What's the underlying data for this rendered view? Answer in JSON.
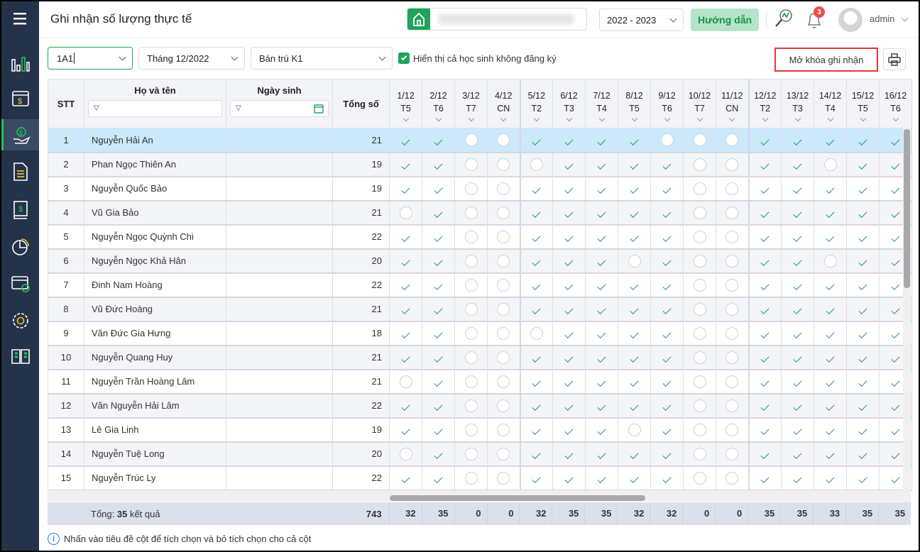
{
  "header": {
    "title": "Ghi nhận số lượng thực tế",
    "school_year": "2022 - 2023",
    "guide_label": "Hướng dẫn",
    "notification_count": "3",
    "user": "admin"
  },
  "colors": {
    "accent": "#22a35a",
    "sidebar": "#243349",
    "selected_row": "#cce8fb",
    "highlight_border": "#e53935"
  },
  "sidebar": {
    "items": [
      {
        "icon": "menu-icon"
      },
      {
        "icon": "bar-chart-icon"
      },
      {
        "icon": "calendar-money-icon"
      },
      {
        "icon": "hand-money-icon",
        "active": true
      },
      {
        "icon": "document-icon"
      },
      {
        "icon": "ledger-icon"
      },
      {
        "icon": "pie-chart-icon"
      },
      {
        "icon": "card-check-icon"
      },
      {
        "icon": "gear-icon"
      },
      {
        "icon": "book-icon"
      }
    ]
  },
  "filters": {
    "class": "1A1",
    "month": "Tháng 12/2022",
    "meal": "Bán trú K1",
    "show_unregistered_label": "Hiển thị cả học sinh không đăng ký",
    "show_unregistered": true,
    "unlock_label": "Mở khóa ghi nhận"
  },
  "table": {
    "headers": {
      "stt": "STT",
      "name": "Họ và tên",
      "dob": "Ngày sinh",
      "total": "Tổng số"
    },
    "days": [
      {
        "d": "1/12",
        "w": "T5"
      },
      {
        "d": "2/12",
        "w": "T6"
      },
      {
        "d": "3/12",
        "w": "T7"
      },
      {
        "d": "4/12",
        "w": "CN"
      },
      {
        "d": "5/12",
        "w": "T2"
      },
      {
        "d": "6/12",
        "w": "T3"
      },
      {
        "d": "7/12",
        "w": "T4"
      },
      {
        "d": "8/12",
        "w": "T5"
      },
      {
        "d": "9/12",
        "w": "T6"
      },
      {
        "d": "10/12",
        "w": "T7"
      },
      {
        "d": "11/12",
        "w": "CN"
      },
      {
        "d": "12/12",
        "w": "T2"
      },
      {
        "d": "13/12",
        "w": "T3"
      },
      {
        "d": "14/12",
        "w": "T4"
      },
      {
        "d": "15/12",
        "w": "T5"
      },
      {
        "d": "16/12",
        "w": "T6"
      }
    ],
    "rows": [
      {
        "stt": "1",
        "name": "Nguyễn Hải An",
        "total": "21",
        "marks": [
          1,
          1,
          0,
          0,
          1,
          1,
          1,
          1,
          0,
          0,
          0,
          1,
          1,
          1,
          1,
          1
        ]
      },
      {
        "stt": "2",
        "name": "Phan Ngọc Thiên An",
        "total": "19",
        "marks": [
          1,
          1,
          0,
          0,
          0,
          1,
          1,
          1,
          1,
          0,
          0,
          1,
          1,
          0,
          1,
          1
        ]
      },
      {
        "stt": "3",
        "name": "Nguyễn Quốc Bảo",
        "total": "19",
        "marks": [
          1,
          1,
          0,
          0,
          1,
          1,
          1,
          1,
          1,
          0,
          0,
          1,
          1,
          1,
          1,
          1
        ]
      },
      {
        "stt": "4",
        "name": "Vũ Gia Bảo",
        "total": "21",
        "marks": [
          0,
          1,
          0,
          0,
          1,
          1,
          1,
          1,
          1,
          0,
          0,
          1,
          1,
          1,
          1,
          1
        ]
      },
      {
        "stt": "5",
        "name": "Nguyễn Ngọc Quỳnh Chi",
        "total": "22",
        "marks": [
          1,
          1,
          0,
          0,
          1,
          1,
          1,
          1,
          1,
          0,
          0,
          1,
          1,
          1,
          1,
          1
        ]
      },
      {
        "stt": "6",
        "name": "Nguyễn Ngọc Khả Hân",
        "total": "20",
        "marks": [
          1,
          1,
          0,
          0,
          1,
          1,
          1,
          0,
          1,
          0,
          0,
          1,
          1,
          0,
          1,
          1
        ]
      },
      {
        "stt": "7",
        "name": "Đinh Nam Hoàng",
        "total": "22",
        "marks": [
          1,
          1,
          0,
          0,
          1,
          1,
          1,
          1,
          1,
          0,
          0,
          1,
          1,
          1,
          1,
          1
        ]
      },
      {
        "stt": "8",
        "name": "Vũ Đức Hoàng",
        "total": "21",
        "marks": [
          1,
          1,
          0,
          0,
          1,
          1,
          1,
          1,
          1,
          0,
          0,
          1,
          1,
          1,
          1,
          1
        ]
      },
      {
        "stt": "9",
        "name": "Văn Đức Gia Hưng",
        "total": "18",
        "marks": [
          1,
          1,
          0,
          0,
          0,
          1,
          1,
          1,
          1,
          0,
          0,
          1,
          1,
          1,
          1,
          1
        ]
      },
      {
        "stt": "10",
        "name": "Nguyễn Quang Huy",
        "total": "21",
        "marks": [
          1,
          1,
          0,
          0,
          1,
          1,
          1,
          1,
          1,
          0,
          0,
          1,
          1,
          1,
          1,
          1
        ]
      },
      {
        "stt": "11",
        "name": "Nguyễn Trần Hoàng Lâm",
        "total": "21",
        "marks": [
          0,
          1,
          0,
          0,
          1,
          1,
          1,
          1,
          1,
          0,
          0,
          1,
          1,
          1,
          1,
          1
        ]
      },
      {
        "stt": "12",
        "name": "Văn Nguyễn Hải Lâm",
        "total": "22",
        "marks": [
          1,
          1,
          0,
          0,
          1,
          1,
          1,
          1,
          1,
          0,
          0,
          1,
          1,
          1,
          1,
          1
        ]
      },
      {
        "stt": "13",
        "name": "Lê Gia Linh",
        "total": "19",
        "marks": [
          1,
          1,
          0,
          0,
          1,
          1,
          1,
          0,
          1,
          0,
          0,
          1,
          1,
          1,
          1,
          1
        ]
      },
      {
        "stt": "14",
        "name": "Nguyễn Tuệ Long",
        "total": "20",
        "marks": [
          0,
          1,
          0,
          0,
          1,
          1,
          1,
          1,
          1,
          0,
          0,
          1,
          1,
          1,
          1,
          1
        ]
      },
      {
        "stt": "15",
        "name": "Nguyễn Trúc Ly",
        "total": "22",
        "marks": [
          1,
          1,
          0,
          0,
          1,
          1,
          1,
          1,
          1,
          0,
          0,
          1,
          1,
          1,
          1,
          1
        ]
      }
    ],
    "footer": {
      "label_prefix": "Tổng: ",
      "count": "35",
      "label_suffix": " kết quả",
      "total": "743",
      "day_totals": [
        "32",
        "35",
        "0",
        "0",
        "32",
        "35",
        "35",
        "32",
        "32",
        "0",
        "0",
        "35",
        "35",
        "33",
        "35",
        "35"
      ]
    }
  },
  "hint": "Nhấn vào tiêu đề cột để tích chọn và bỏ tích chọn cho cả cột"
}
